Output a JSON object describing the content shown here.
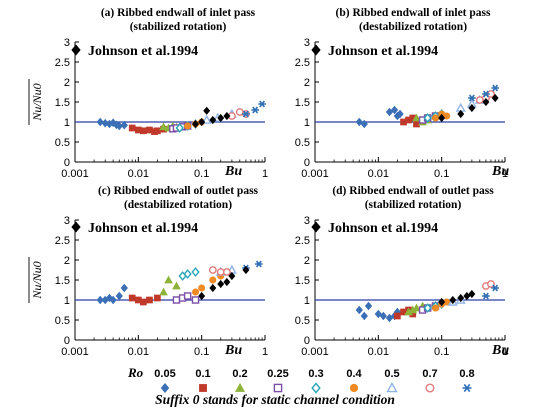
{
  "chart_data": [
    {
      "type": "scatter",
      "title": "(a) Ribbed endwall of inlet pass",
      "subtitle": "(stabilized rotation)",
      "xlabel": "Bu",
      "ylabel": "Nu/Nu0",
      "xscale": "log",
      "xlim": [
        0.001,
        1
      ],
      "ylim": [
        0,
        3
      ],
      "xticks": [
        "0.001",
        "0.01",
        "0.1",
        "1"
      ],
      "yticks": [
        "0",
        "0.5",
        "1",
        "1.5",
        "2",
        "2.5",
        "3"
      ],
      "reference_line_y": 1,
      "annotation": "Johnson et al.1994",
      "series": [
        {
          "name": "0.05",
          "x": [
            0.0025,
            0.003,
            0.0035,
            0.004,
            0.0045,
            0.005,
            0.006
          ],
          "y": [
            1.0,
            0.97,
            0.95,
            0.98,
            0.93,
            0.9,
            0.92
          ]
        },
        {
          "name": "0.1",
          "x": [
            0.008,
            0.01,
            0.012,
            0.015,
            0.018,
            0.02,
            0.025
          ],
          "y": [
            0.85,
            0.8,
            0.78,
            0.8,
            0.76,
            0.78,
            0.82
          ]
        },
        {
          "name": "0.2",
          "x": [
            0.025,
            0.03,
            0.035,
            0.04
          ],
          "y": [
            0.88,
            0.85,
            0.9,
            0.87
          ]
        },
        {
          "name": "0.25",
          "x": [
            0.035,
            0.04,
            0.05,
            0.06
          ],
          "y": [
            0.83,
            0.85,
            0.88,
            0.9
          ]
        },
        {
          "name": "0.3",
          "x": [
            0.045,
            0.06,
            0.08
          ],
          "y": [
            0.85,
            0.9,
            0.95
          ]
        },
        {
          "name": "0.4",
          "x": [
            0.06,
            0.08,
            0.1
          ],
          "y": [
            0.9,
            0.95,
            1.0
          ]
        },
        {
          "name": "0.5",
          "x": [
            0.12,
            0.18,
            0.3
          ],
          "y": [
            1.05,
            1.1,
            1.2
          ]
        },
        {
          "name": "0.7",
          "x": [
            0.3,
            0.4,
            0.5
          ],
          "y": [
            1.15,
            1.25,
            1.2
          ]
        },
        {
          "name": "0.8",
          "x": [
            0.5,
            0.7,
            0.9
          ],
          "y": [
            1.2,
            1.3,
            1.45
          ]
        },
        {
          "name": "Johnson et al.1994",
          "x": [
            0.08,
            0.1,
            0.12,
            0.15,
            0.2,
            0.25
          ],
          "y": [
            0.95,
            1.0,
            1.28,
            1.05,
            1.1,
            1.15
          ]
        }
      ]
    },
    {
      "type": "scatter",
      "title": "(b) Ribbed endwall of inlet pass",
      "subtitle": "(destabilized rotation)",
      "xlabel": "Bu",
      "ylabel": "",
      "xscale": "log",
      "xlim": [
        0.001,
        1
      ],
      "ylim": [
        0,
        3
      ],
      "xticks": [
        "0.001",
        "0.01",
        "0.1",
        "1"
      ],
      "yticks": [
        "0",
        "0.5",
        "1",
        "1.5",
        "2",
        "2.5",
        "3"
      ],
      "reference_line_y": 1,
      "annotation": "Johnson et al.1994",
      "series": [
        {
          "name": "0.05",
          "x": [
            0.005,
            0.006,
            0.015,
            0.018,
            0.02,
            0.022
          ],
          "y": [
            1.0,
            0.95,
            1.25,
            1.3,
            1.15,
            1.2
          ]
        },
        {
          "name": "0.1",
          "x": [
            0.025,
            0.03,
            0.035,
            0.04,
            0.05,
            0.06
          ],
          "y": [
            1.0,
            1.05,
            1.1,
            0.95,
            1.05,
            1.1
          ]
        },
        {
          "name": "0.2",
          "x": [
            0.04,
            0.05,
            0.06
          ],
          "y": [
            1.1,
            1.0,
            1.05
          ]
        },
        {
          "name": "0.25",
          "x": [
            0.05,
            0.06,
            0.08
          ],
          "y": [
            1.05,
            1.1,
            1.15
          ]
        },
        {
          "name": "0.3",
          "x": [
            0.06,
            0.08,
            0.1
          ],
          "y": [
            1.1,
            1.15,
            1.2
          ]
        },
        {
          "name": "0.4",
          "x": [
            0.08,
            0.1,
            0.12
          ],
          "y": [
            1.1,
            1.2,
            1.15
          ]
        },
        {
          "name": "0.5",
          "x": [
            0.2,
            0.3,
            0.4
          ],
          "y": [
            1.35,
            1.45,
            1.55
          ]
        },
        {
          "name": "0.7",
          "x": [
            0.4,
            0.5,
            0.6
          ],
          "y": [
            1.55,
            1.6,
            1.7
          ]
        },
        {
          "name": "0.8",
          "x": [
            0.3,
            0.5,
            0.7
          ],
          "y": [
            1.6,
            1.7,
            1.85
          ]
        },
        {
          "name": "Johnson et al.1994",
          "x": [
            0.1,
            0.2,
            0.3,
            0.5,
            0.7
          ],
          "y": [
            1.1,
            1.2,
            1.35,
            1.5,
            1.6
          ]
        }
      ]
    },
    {
      "type": "scatter",
      "title": "(c) Ribbed endwall of outlet pass",
      "subtitle": "(destabilized rotation)",
      "xlabel": "Bu",
      "ylabel": "Nu/Nu0",
      "xscale": "log",
      "xlim": [
        0.001,
        1
      ],
      "ylim": [
        0,
        3
      ],
      "xticks": [
        "0.001",
        "0.01",
        "0.1",
        "1"
      ],
      "yticks": [
        "0",
        "0.5",
        "1",
        "1.5",
        "2",
        "2.5",
        "3"
      ],
      "reference_line_y": 1,
      "annotation": "Johnson et al.1994",
      "series": [
        {
          "name": "0.05",
          "x": [
            0.0025,
            0.003,
            0.0035,
            0.004,
            0.005,
            0.006
          ],
          "y": [
            1.0,
            1.0,
            1.05,
            1.0,
            1.1,
            1.3
          ]
        },
        {
          "name": "0.1",
          "x": [
            0.008,
            0.01,
            0.012,
            0.015,
            0.02
          ],
          "y": [
            1.05,
            1.0,
            0.95,
            1.0,
            1.05
          ]
        },
        {
          "name": "0.2",
          "x": [
            0.025,
            0.03,
            0.04
          ],
          "y": [
            1.2,
            1.5,
            1.35
          ]
        },
        {
          "name": "0.25",
          "x": [
            0.04,
            0.05,
            0.06,
            0.08
          ],
          "y": [
            1.0,
            1.05,
            1.1,
            1.0
          ]
        },
        {
          "name": "0.3",
          "x": [
            0.05,
            0.06,
            0.08
          ],
          "y": [
            1.6,
            1.65,
            1.7
          ]
        },
        {
          "name": "0.4",
          "x": [
            0.08,
            0.1,
            0.15,
            0.2
          ],
          "y": [
            1.2,
            1.3,
            1.5,
            1.6
          ]
        },
        {
          "name": "0.5",
          "x": [
            0.2,
            0.3
          ],
          "y": [
            1.7,
            1.75
          ]
        },
        {
          "name": "0.7",
          "x": [
            0.15,
            0.2,
            0.25
          ],
          "y": [
            1.75,
            1.7,
            1.7
          ]
        },
        {
          "name": "0.8",
          "x": [
            0.5,
            0.8
          ],
          "y": [
            1.8,
            1.9
          ]
        },
        {
          "name": "Johnson et al.1994",
          "x": [
            0.1,
            0.15,
            0.2,
            0.25,
            0.3,
            0.5
          ],
          "y": [
            1.1,
            1.3,
            1.4,
            1.45,
            1.6,
            1.75
          ]
        }
      ]
    },
    {
      "type": "scatter",
      "title": "(d) Ribbed endwall of outlet pass",
      "subtitle": "(stabilized rotation)",
      "xlabel": "Bu",
      "ylabel": "",
      "xscale": "log",
      "xlim": [
        0.001,
        1
      ],
      "ylim": [
        0,
        3
      ],
      "xticks": [
        "0.001",
        "0.01",
        "0.1",
        "1"
      ],
      "yticks": [
        "0",
        "0.5",
        "1",
        "1.5",
        "2",
        "2.5",
        "3"
      ],
      "reference_line_y": 1,
      "annotation": "Johnson et al.1994",
      "series": [
        {
          "name": "0.05",
          "x": [
            0.005,
            0.006,
            0.007,
            0.01,
            0.012,
            0.015,
            0.018,
            0.02
          ],
          "y": [
            0.75,
            0.6,
            0.85,
            0.65,
            0.6,
            0.55,
            0.6,
            0.7
          ]
        },
        {
          "name": "0.1",
          "x": [
            0.02,
            0.025,
            0.03,
            0.035
          ],
          "y": [
            0.6,
            0.7,
            0.75,
            0.65
          ]
        },
        {
          "name": "0.2",
          "x": [
            0.03,
            0.035,
            0.04,
            0.05
          ],
          "y": [
            0.7,
            0.75,
            0.8,
            0.85
          ]
        },
        {
          "name": "0.25",
          "x": [
            0.05,
            0.06,
            0.08
          ],
          "y": [
            0.75,
            0.8,
            0.85
          ]
        },
        {
          "name": "0.3",
          "x": [
            0.06,
            0.08,
            0.1
          ],
          "y": [
            0.8,
            0.85,
            0.9
          ]
        },
        {
          "name": "0.4",
          "x": [
            0.08,
            0.1,
            0.12
          ],
          "y": [
            0.8,
            0.9,
            0.95
          ]
        },
        {
          "name": "0.5",
          "x": [
            0.15,
            0.2
          ],
          "y": [
            0.95,
            1.0
          ]
        },
        {
          "name": "0.7",
          "x": [
            0.5,
            0.6
          ],
          "y": [
            1.35,
            1.4
          ]
        },
        {
          "name": "0.8",
          "x": [
            0.5,
            0.7
          ],
          "y": [
            1.1,
            1.3
          ]
        },
        {
          "name": "Johnson et al.1994",
          "x": [
            0.1,
            0.15,
            0.2,
            0.25,
            0.3
          ],
          "y": [
            0.95,
            1.0,
            1.05,
            1.1,
            1.15
          ]
        }
      ]
    }
  ],
  "legend": {
    "title": "Ro",
    "items": [
      {
        "label": "0.05",
        "marker": "diamond",
        "color": "#3B6FB6",
        "filled": true
      },
      {
        "label": "0.1",
        "marker": "square",
        "color": "#C0392B",
        "filled": true
      },
      {
        "label": "0.2",
        "marker": "triangle",
        "color": "#8DB33A",
        "filled": true
      },
      {
        "label": "0.25",
        "marker": "square",
        "color": "#7B4FA8",
        "filled": false
      },
      {
        "label": "0.3",
        "marker": "diamond",
        "color": "#2AA6B8",
        "filled": false
      },
      {
        "label": "0.4",
        "marker": "circle",
        "color": "#F08A24",
        "filled": true
      },
      {
        "label": "0.5",
        "marker": "triangle",
        "color": "#8FB4E3",
        "filled": false
      },
      {
        "label": "0.7",
        "marker": "circle",
        "color": "#E07B7B",
        "filled": false
      },
      {
        "label": "0.8",
        "marker": "star",
        "color": "#2F6FB5",
        "filled": true
      }
    ],
    "johnson_marker": {
      "marker": "diamond",
      "color": "#000000",
      "filled": true
    }
  },
  "caption": "Suffix 0 stands for static channel condition",
  "reference_line_color": "#2B3FA8"
}
